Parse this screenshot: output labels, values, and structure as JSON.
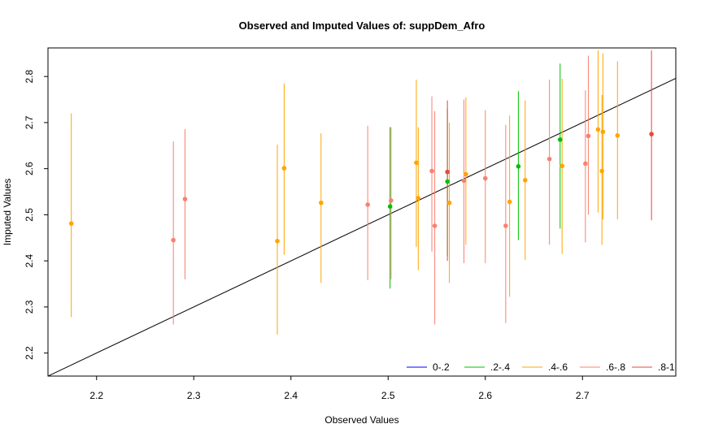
{
  "chart_data": {
    "type": "scatter",
    "title": "Observed and Imputed Values of: suppDem_Afro",
    "xlabel": "Observed Values",
    "ylabel": "Imputed Values",
    "xlim": [
      2.15,
      2.796
    ],
    "ylim": [
      2.15,
      2.862
    ],
    "xticks": [
      2.2,
      2.3,
      2.4,
      2.5,
      2.6,
      2.7
    ],
    "yticks": [
      2.2,
      2.3,
      2.4,
      2.5,
      2.6,
      2.7,
      2.8
    ],
    "xtick_labels": [
      "2.2",
      "2.3",
      "2.4",
      "2.5",
      "2.6",
      "2.7"
    ],
    "ytick_labels": [
      "2.2",
      "2.3",
      "2.4",
      "2.5",
      "2.6",
      "2.7",
      "2.8"
    ],
    "reference_line": {
      "slope": 1,
      "intercept": 0
    },
    "legend_position": "bottom-right",
    "series": [
      {
        "name": "0-.2",
        "color": "#0000FF",
        "points": []
      },
      {
        "name": ".2-.4",
        "color": "#00C000",
        "points": [
          {
            "x": 2.502,
            "y": 2.518,
            "lo": 2.34,
            "hi": 2.69
          },
          {
            "x": 2.561,
            "y": 2.572,
            "lo": 2.41,
            "hi": 2.73
          },
          {
            "x": 2.634,
            "y": 2.605,
            "lo": 2.445,
            "hi": 2.768
          },
          {
            "x": 2.677,
            "y": 2.663,
            "lo": 2.47,
            "hi": 2.828
          }
        ]
      },
      {
        "name": ".4-.6",
        "color": "#FFA500",
        "points": [
          {
            "x": 2.174,
            "y": 2.481,
            "lo": 2.278,
            "hi": 2.72
          },
          {
            "x": 2.386,
            "y": 2.443,
            "lo": 2.24,
            "hi": 2.652
          },
          {
            "x": 2.393,
            "y": 2.601,
            "lo": 2.413,
            "hi": 2.785
          },
          {
            "x": 2.431,
            "y": 2.526,
            "lo": 2.352,
            "hi": 2.677
          },
          {
            "x": 2.529,
            "y": 2.613,
            "lo": 2.43,
            "hi": 2.793
          },
          {
            "x": 2.531,
            "y": 2.536,
            "lo": 2.38,
            "hi": 2.69
          },
          {
            "x": 2.563,
            "y": 2.526,
            "lo": 2.352,
            "hi": 2.7
          },
          {
            "x": 2.58,
            "y": 2.588,
            "lo": 2.435,
            "hi": 2.755
          },
          {
            "x": 2.625,
            "y": 2.528,
            "lo": 2.322,
            "hi": 2.715
          },
          {
            "x": 2.641,
            "y": 2.575,
            "lo": 2.402,
            "hi": 2.748
          },
          {
            "x": 2.679,
            "y": 2.606,
            "lo": 2.415,
            "hi": 2.795
          },
          {
            "x": 2.716,
            "y": 2.685,
            "lo": 2.505,
            "hi": 2.857
          },
          {
            "x": 2.72,
            "y": 2.595,
            "lo": 2.435,
            "hi": 2.76
          },
          {
            "x": 2.721,
            "y": 2.68,
            "lo": 2.49,
            "hi": 2.85
          },
          {
            "x": 2.736,
            "y": 2.672,
            "lo": 2.49,
            "hi": 2.833
          }
        ]
      },
      {
        "name": ".6-.8",
        "color": "#FA8072",
        "points": [
          {
            "x": 2.279,
            "y": 2.445,
            "lo": 2.262,
            "hi": 2.659
          },
          {
            "x": 2.291,
            "y": 2.534,
            "lo": 2.36,
            "hi": 2.686
          },
          {
            "x": 2.479,
            "y": 2.522,
            "lo": 2.358,
            "hi": 2.693
          },
          {
            "x": 2.503,
            "y": 2.531,
            "lo": 2.36,
            "hi": 2.69
          },
          {
            "x": 2.545,
            "y": 2.595,
            "lo": 2.42,
            "hi": 2.757
          },
          {
            "x": 2.548,
            "y": 2.476,
            "lo": 2.262,
            "hi": 2.725
          },
          {
            "x": 2.578,
            "y": 2.574,
            "lo": 2.395,
            "hi": 2.75
          },
          {
            "x": 2.6,
            "y": 2.579,
            "lo": 2.395,
            "hi": 2.727
          },
          {
            "x": 2.621,
            "y": 2.476,
            "lo": 2.265,
            "hi": 2.695
          },
          {
            "x": 2.666,
            "y": 2.621,
            "lo": 2.435,
            "hi": 2.793
          },
          {
            "x": 2.703,
            "y": 2.611,
            "lo": 2.44,
            "hi": 2.77
          },
          {
            "x": 2.706,
            "y": 2.671,
            "lo": 2.5,
            "hi": 2.845
          }
        ]
      },
      {
        "name": ".8-1",
        "color": "#E64A3C",
        "points": [
          {
            "x": 2.561,
            "y": 2.593,
            "lo": 2.4,
            "hi": 2.748
          },
          {
            "x": 2.771,
            "y": 2.675,
            "lo": 2.488,
            "hi": 2.857
          }
        ]
      }
    ]
  }
}
